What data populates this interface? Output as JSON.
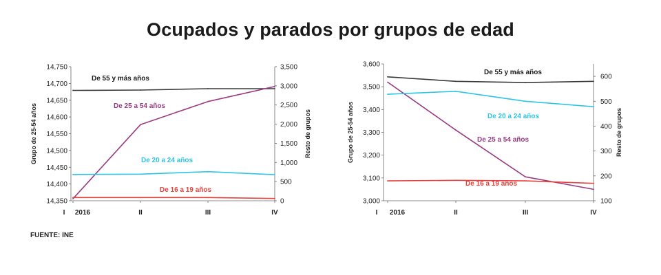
{
  "title": "Ocupados y parados por grupos de edad",
  "source": "FUENTE: INE",
  "chart_data": [
    {
      "type": "line",
      "title": "",
      "x": [
        "I 2016",
        "II",
        "III",
        "IV"
      ],
      "x_ticks": [
        {
          "label": "I",
          "sub": "2016"
        },
        {
          "label": "II",
          "sub": ""
        },
        {
          "label": "III",
          "sub": ""
        },
        {
          "label": "IV",
          "sub": ""
        }
      ],
      "ylabel_left": "Grupo de 25-54 años",
      "ylabel_right": "Resto de grupos",
      "ylim_left": [
        14350,
        14750
      ],
      "ylim_right": [
        0,
        3500
      ],
      "yticks_left": [
        "14,350",
        "14,400",
        "14,450",
        "14,500",
        "14,550",
        "14,600",
        "14,650",
        "14,700",
        "14,750"
      ],
      "yticks_right": [
        "0",
        "500",
        "1,000",
        "1,500",
        "2,000",
        "2,500",
        "3,000",
        "3,500"
      ],
      "grid": false,
      "series": [
        {
          "name": "De 55 y más años",
          "axis": "right",
          "color": "#3a3a3a",
          "values": [
            2880,
            2890,
            2925,
            2925
          ]
        },
        {
          "name": "De 25 a 54 años",
          "axis": "left",
          "color": "#9a3a82",
          "values": [
            14356,
            14577,
            14646,
            14691
          ]
        },
        {
          "name": "De 20 a 24 años",
          "axis": "right",
          "color": "#2ec4e6",
          "values": [
            685,
            695,
            760,
            680
          ]
        },
        {
          "name": "De 16 a 19 años",
          "axis": "right",
          "color": "#e8403a",
          "values": [
            85,
            85,
            85,
            60
          ]
        }
      ]
    },
    {
      "type": "line",
      "title": "",
      "x": [
        "I 2016",
        "II",
        "III",
        "IV"
      ],
      "x_ticks": [
        {
          "label": "I",
          "sub": "2016"
        },
        {
          "label": "II",
          "sub": ""
        },
        {
          "label": "III",
          "sub": ""
        },
        {
          "label": "IV",
          "sub": ""
        }
      ],
      "ylabel_left": "Grupo de 25-54 años",
      "ylabel_right": "Resto de grupos",
      "ylim_left": [
        3000,
        3600
      ],
      "ylim_right": [
        100,
        650
      ],
      "yticks_left": [
        "3,000",
        "3,100",
        "3,200",
        "3,300",
        "3,400",
        "3,500",
        "3,600"
      ],
      "yticks_right": [
        "100",
        "200",
        "300",
        "400",
        "500",
        "600"
      ],
      "grid": false,
      "series": [
        {
          "name": "De 55 y más años",
          "axis": "right",
          "color": "#3a3a3a",
          "values": [
            598,
            580,
            575,
            580
          ]
        },
        {
          "name": "De 25 a 54 años",
          "axis": "left",
          "color": "#9a3a82",
          "values": [
            3520,
            3310,
            3105,
            3050
          ]
        },
        {
          "name": "De 20 a 24 años",
          "axis": "right",
          "color": "#2ec4e6",
          "values": [
            528,
            540,
            500,
            478
          ]
        },
        {
          "name": "De 16 a 19 años",
          "axis": "right",
          "color": "#e8403a",
          "values": [
            180,
            182,
            180,
            170
          ]
        }
      ]
    }
  ]
}
